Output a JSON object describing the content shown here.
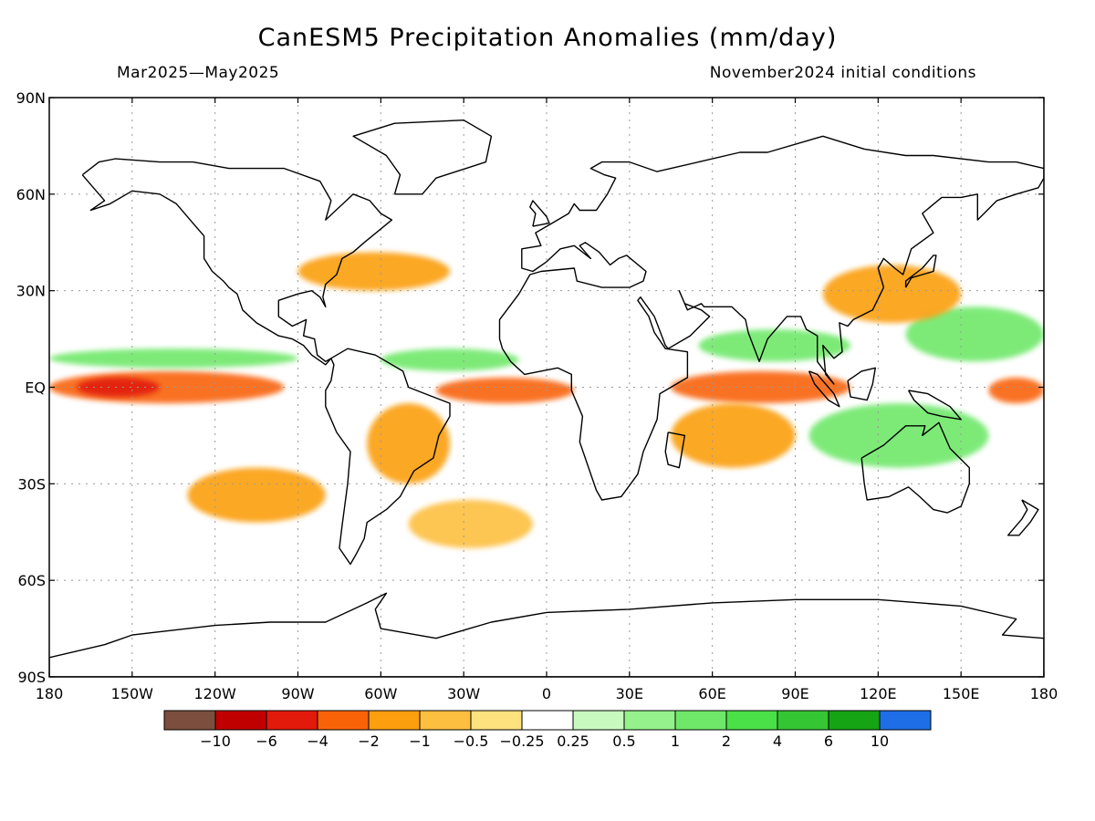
{
  "title": "CanESM5 Precipitation Anomalies (mm/day)",
  "subtitle_left": "Mar2025—May2025",
  "subtitle_right": "November2024 initial conditions",
  "map": {
    "projection": "equirectangular",
    "lon_range": [
      -180,
      180
    ],
    "lat_range": [
      -90,
      90
    ],
    "gridlines": true,
    "lat_ticks": [
      {
        "value": 90,
        "label": "90N"
      },
      {
        "value": 60,
        "label": "60N"
      },
      {
        "value": 30,
        "label": "30N"
      },
      {
        "value": 0,
        "label": "EQ"
      },
      {
        "value": -30,
        "label": "30S"
      },
      {
        "value": -60,
        "label": "60S"
      },
      {
        "value": -90,
        "label": "90S"
      }
    ],
    "lon_ticks": [
      {
        "value": -180,
        "label": "180"
      },
      {
        "value": -150,
        "label": "150W"
      },
      {
        "value": -120,
        "label": "120W"
      },
      {
        "value": -90,
        "label": "90W"
      },
      {
        "value": -60,
        "label": "60W"
      },
      {
        "value": -30,
        "label": "30W"
      },
      {
        "value": 0,
        "label": "0"
      },
      {
        "value": 30,
        "label": "30E"
      },
      {
        "value": 60,
        "label": "60E"
      },
      {
        "value": 90,
        "label": "90E"
      },
      {
        "value": 120,
        "label": "120E"
      },
      {
        "value": 150,
        "label": "150E"
      },
      {
        "value": 180,
        "label": "180"
      }
    ],
    "anomaly_regions": [
      {
        "name": "equatorial-pacific-dry",
        "level": -2,
        "lon": [
          -180,
          -95
        ],
        "lat": [
          -5,
          5
        ]
      },
      {
        "name": "central-pacific-dry-core",
        "level": -4,
        "lon": [
          -170,
          -140
        ],
        "lat": [
          -3,
          3
        ]
      },
      {
        "name": "east-pacific-itcz-wet",
        "level": 1,
        "lon": [
          -180,
          -90
        ],
        "lat": [
          6,
          12
        ]
      },
      {
        "name": "atlantic-equatorial-dry",
        "level": -2,
        "lon": [
          -40,
          10
        ],
        "lat": [
          -5,
          3
        ]
      },
      {
        "name": "atlantic-itcz-wet",
        "level": 1,
        "lon": [
          -60,
          -10
        ],
        "lat": [
          5,
          12
        ]
      },
      {
        "name": "indian-ocean-dry",
        "level": -2,
        "lon": [
          45,
          110
        ],
        "lat": [
          -5,
          5
        ]
      },
      {
        "name": "south-indian-dry",
        "level": -1,
        "lon": [
          45,
          90
        ],
        "lat": [
          -25,
          -5
        ]
      },
      {
        "name": "west-pacific-dry",
        "level": -2,
        "lon": [
          160,
          180
        ],
        "lat": [
          -5,
          3
        ]
      },
      {
        "name": "west-pacific-wet",
        "level": 1,
        "lon": [
          130,
          180
        ],
        "lat": [
          8,
          25
        ]
      },
      {
        "name": "nw-pacific-dry",
        "level": -1,
        "lon": [
          100,
          150
        ],
        "lat": [
          20,
          38
        ]
      },
      {
        "name": "maritime-continent-wet",
        "level": 1,
        "lon": [
          95,
          160
        ],
        "lat": [
          -25,
          -5
        ]
      },
      {
        "name": "us-east-dry",
        "level": -1,
        "lon": [
          -90,
          -35
        ],
        "lat": [
          30,
          42
        ]
      },
      {
        "name": "south-america-dry",
        "level": -1,
        "lon": [
          -65,
          -35
        ],
        "lat": [
          -30,
          -5
        ]
      },
      {
        "name": "south-pacific-dry",
        "level": -1,
        "lon": [
          -130,
          -80
        ],
        "lat": [
          -42,
          -25
        ]
      },
      {
        "name": "south-atlantic-dry",
        "level": -0.5,
        "lon": [
          -50,
          -5
        ],
        "lat": [
          -50,
          -35
        ]
      },
      {
        "name": "arabian-sea-wet",
        "level": 1,
        "lon": [
          55,
          110
        ],
        "lat": [
          8,
          18
        ]
      }
    ]
  },
  "legend": {
    "labels": [
      "−10",
      "−6",
      "−4",
      "−2",
      "−1",
      "−0.5",
      "−0.25",
      "0.25",
      "0.5",
      "1",
      "2",
      "4",
      "6",
      "10"
    ],
    "colors": [
      "#7b4e3e",
      "#c00000",
      "#e11a0c",
      "#f96307",
      "#fb9f0f",
      "#fdbf3f",
      "#fde27d",
      "#ffffff",
      "#c8fac0",
      "#94f18b",
      "#6fe86a",
      "#4ae047",
      "#35c733",
      "#14a414",
      "#1e6ee8"
    ]
  }
}
